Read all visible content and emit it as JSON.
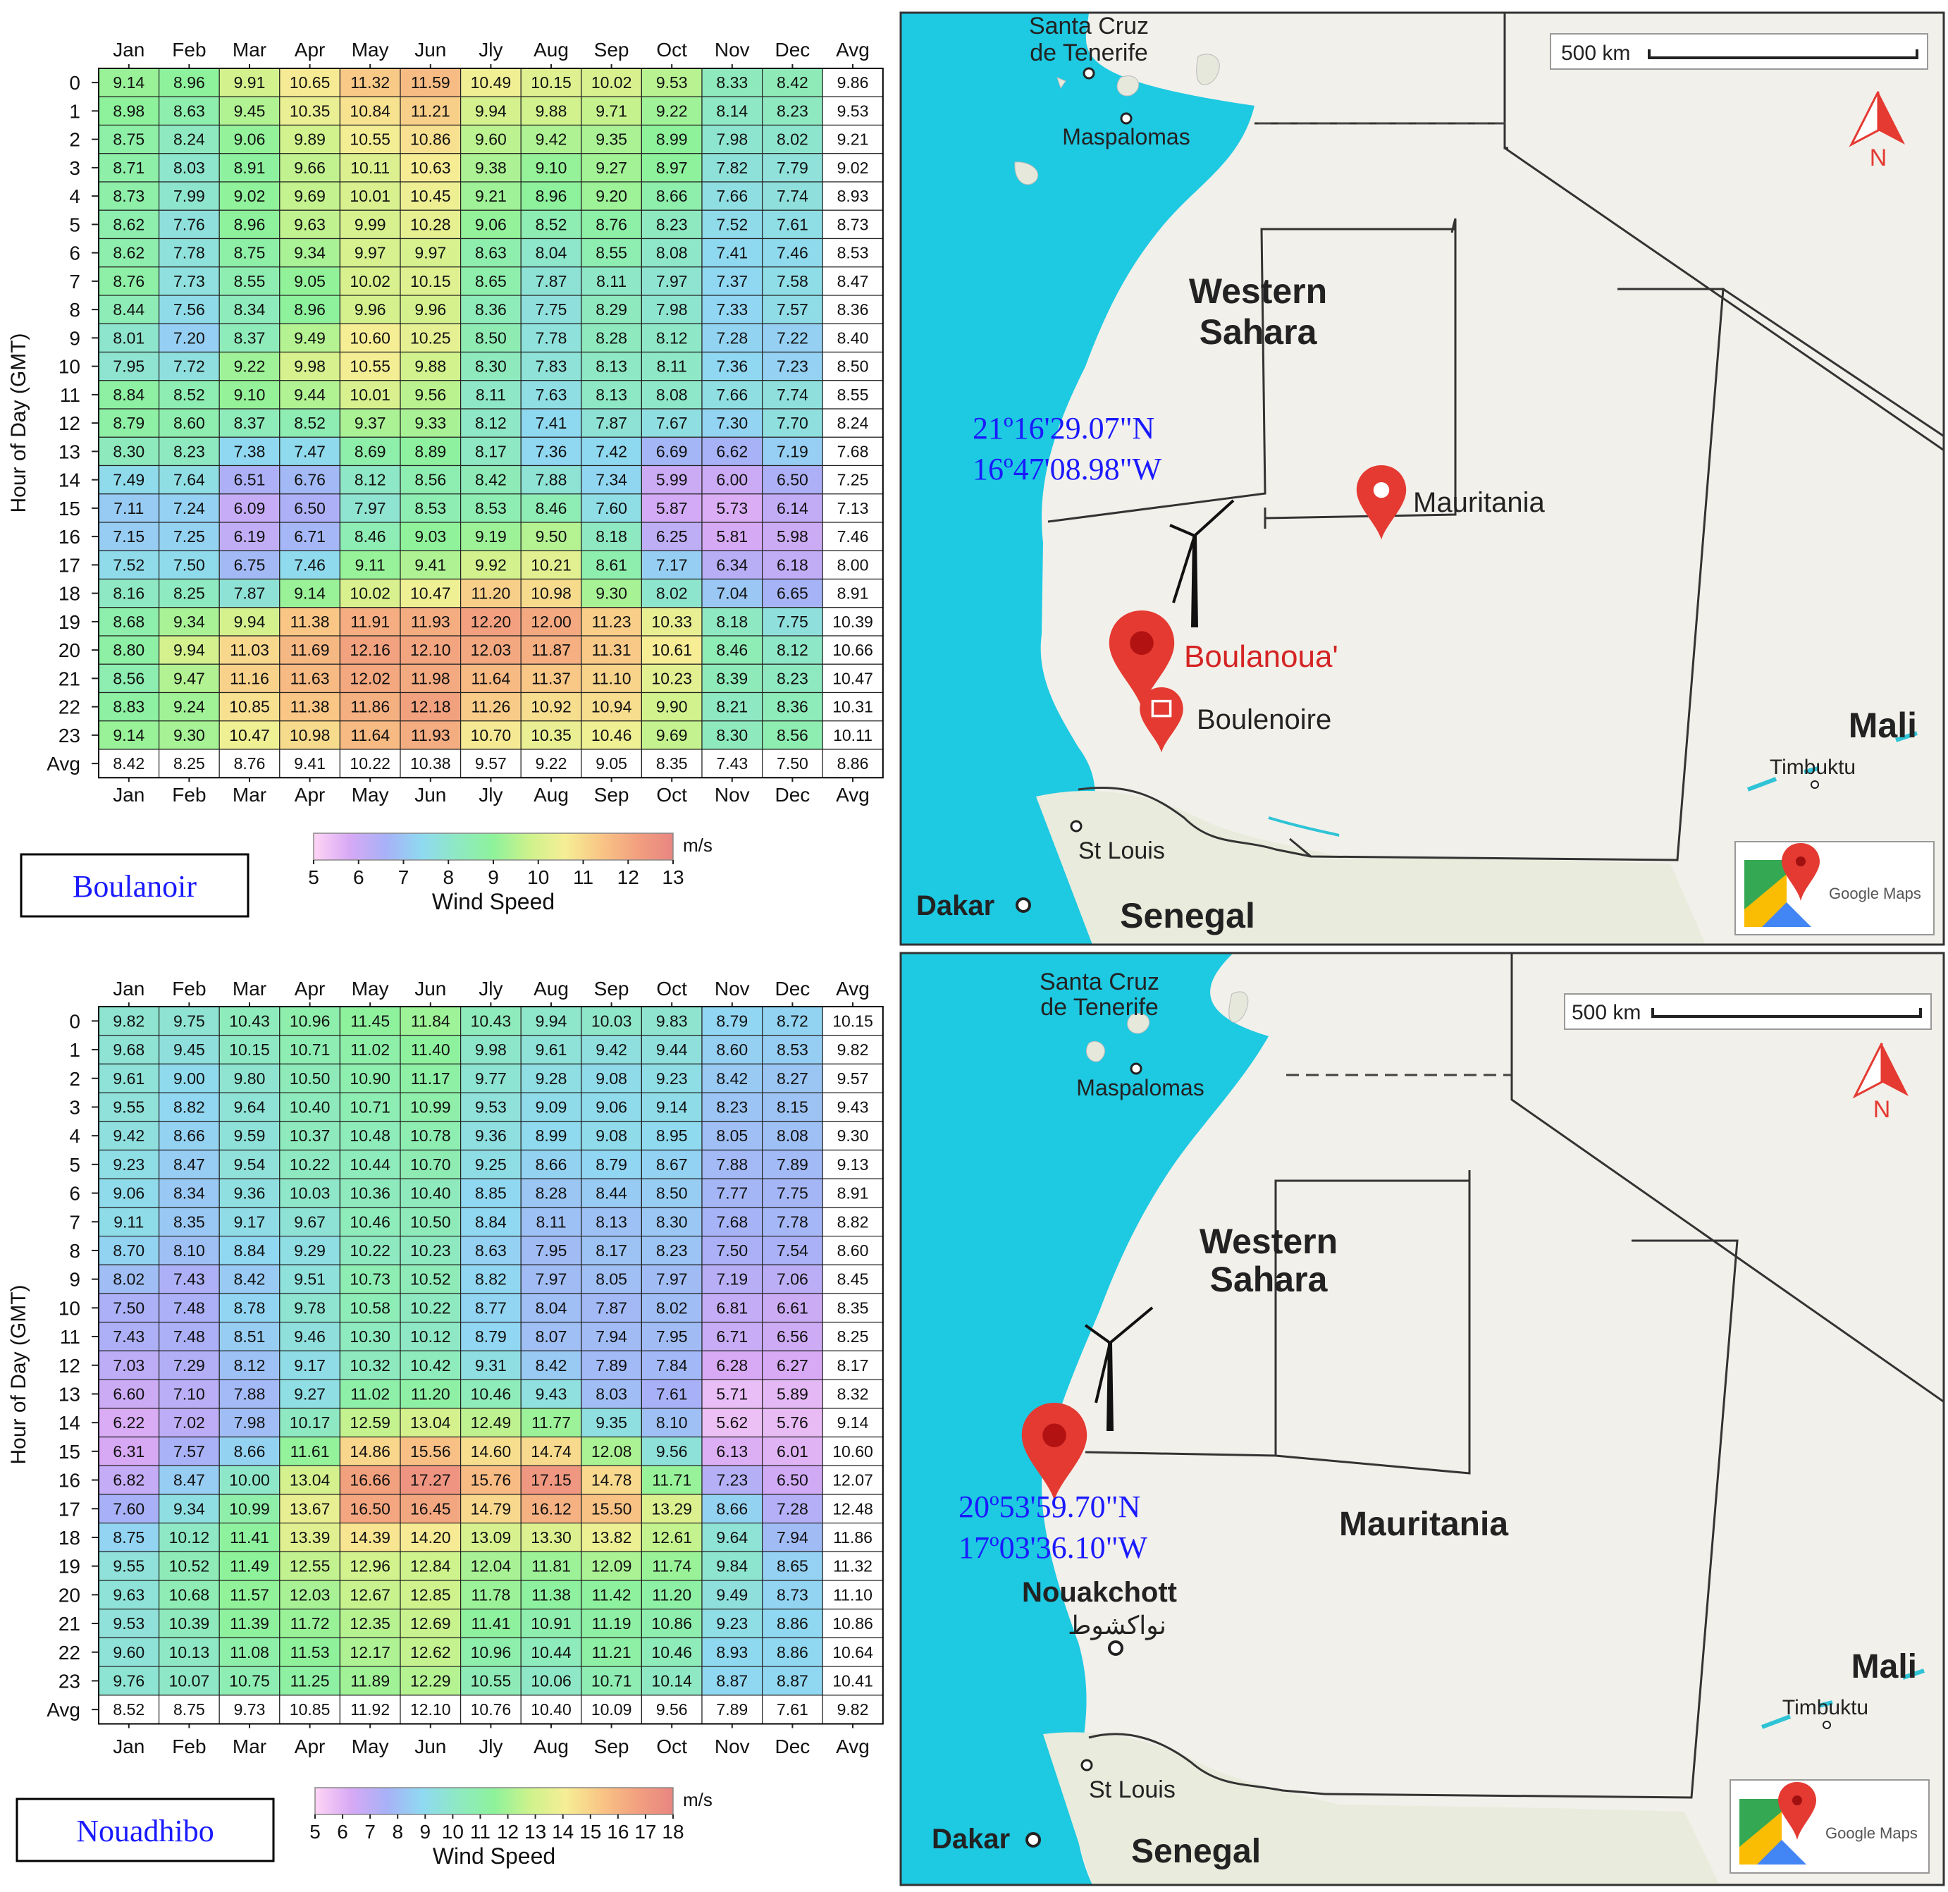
{
  "heatmaps": [
    {
      "id": "boulanoir",
      "site_label": "Boulanoir",
      "ylabel": "Hour of Day (GMT)",
      "months": [
        "Jan",
        "Feb",
        "Mar",
        "Apr",
        "May",
        "Jun",
        "Jly",
        "Aug",
        "Sep",
        "Oct",
        "Nov",
        "Dec",
        "Avg"
      ],
      "hours": [
        "0",
        "1",
        "2",
        "3",
        "4",
        "5",
        "6",
        "7",
        "8",
        "9",
        "10",
        "11",
        "12",
        "13",
        "14",
        "15",
        "16",
        "17",
        "18",
        "19",
        "20",
        "21",
        "22",
        "23",
        "Avg"
      ],
      "scale_min": 5,
      "scale_max": 13,
      "colorbar_ticks": [
        "5",
        "6",
        "7",
        "8",
        "9",
        "10",
        "11",
        "12",
        "13"
      ],
      "colorbar_title": "Wind Speed",
      "colorbar_unit": "m/s",
      "values": [
        [
          "9.14",
          "8.96",
          "9.91",
          "10.65",
          "11.32",
          "11.59",
          "10.49",
          "10.15",
          "10.02",
          "9.53",
          "8.33",
          "8.42",
          "9.86"
        ],
        [
          "8.98",
          "8.63",
          "9.45",
          "10.35",
          "10.84",
          "11.21",
          "9.94",
          "9.88",
          "9.71",
          "9.22",
          "8.14",
          "8.23",
          "9.53"
        ],
        [
          "8.75",
          "8.24",
          "9.06",
          "9.89",
          "10.55",
          "10.86",
          "9.60",
          "9.42",
          "9.35",
          "8.99",
          "7.98",
          "8.02",
          "9.21"
        ],
        [
          "8.71",
          "8.03",
          "8.91",
          "9.66",
          "10.11",
          "10.63",
          "9.38",
          "9.10",
          "9.27",
          "8.97",
          "7.82",
          "7.79",
          "9.02"
        ],
        [
          "8.73",
          "7.99",
          "9.02",
          "9.69",
          "10.01",
          "10.45",
          "9.21",
          "8.96",
          "9.20",
          "8.66",
          "7.66",
          "7.74",
          "8.93"
        ],
        [
          "8.62",
          "7.76",
          "8.96",
          "9.63",
          "9.99",
          "10.28",
          "9.06",
          "8.52",
          "8.76",
          "8.23",
          "7.52",
          "7.61",
          "8.73"
        ],
        [
          "8.62",
          "7.78",
          "8.75",
          "9.34",
          "9.97",
          "9.97",
          "8.63",
          "8.04",
          "8.55",
          "8.08",
          "7.41",
          "7.46",
          "8.53"
        ],
        [
          "8.76",
          "7.73",
          "8.55",
          "9.05",
          "10.02",
          "10.15",
          "8.65",
          "7.87",
          "8.11",
          "7.97",
          "7.37",
          "7.58",
          "8.47"
        ],
        [
          "8.44",
          "7.56",
          "8.34",
          "8.96",
          "9.96",
          "9.96",
          "8.36",
          "7.75",
          "8.29",
          "7.98",
          "7.33",
          "7.57",
          "8.36"
        ],
        [
          "8.01",
          "7.20",
          "8.37",
          "9.49",
          "10.60",
          "10.25",
          "8.50",
          "7.78",
          "8.28",
          "8.12",
          "7.28",
          "7.22",
          "8.40"
        ],
        [
          "7.95",
          "7.72",
          "9.22",
          "9.98",
          "10.55",
          "9.88",
          "8.30",
          "7.83",
          "8.13",
          "8.11",
          "7.36",
          "7.23",
          "8.50"
        ],
        [
          "8.84",
          "8.52",
          "9.10",
          "9.44",
          "10.01",
          "9.56",
          "8.11",
          "7.63",
          "8.13",
          "8.08",
          "7.66",
          "7.74",
          "8.55"
        ],
        [
          "8.79",
          "8.60",
          "8.37",
          "8.52",
          "9.37",
          "9.33",
          "8.12",
          "7.41",
          "7.87",
          "7.67",
          "7.30",
          "7.70",
          "8.24"
        ],
        [
          "8.30",
          "8.23",
          "7.38",
          "7.47",
          "8.69",
          "8.89",
          "8.17",
          "7.36",
          "7.42",
          "6.69",
          "6.62",
          "7.19",
          "7.68"
        ],
        [
          "7.49",
          "7.64",
          "6.51",
          "6.76",
          "8.12",
          "8.56",
          "8.42",
          "7.88",
          "7.34",
          "5.99",
          "6.00",
          "6.50",
          "7.25"
        ],
        [
          "7.11",
          "7.24",
          "6.09",
          "6.50",
          "7.97",
          "8.53",
          "8.53",
          "8.46",
          "7.60",
          "5.87",
          "5.73",
          "6.14",
          "7.13"
        ],
        [
          "7.15",
          "7.25",
          "6.19",
          "6.71",
          "8.46",
          "9.03",
          "9.19",
          "9.50",
          "8.18",
          "6.25",
          "5.81",
          "5.98",
          "7.46"
        ],
        [
          "7.52",
          "7.50",
          "6.75",
          "7.46",
          "9.11",
          "9.41",
          "9.92",
          "10.21",
          "8.61",
          "7.17",
          "6.34",
          "6.18",
          "8.00"
        ],
        [
          "8.16",
          "8.25",
          "7.87",
          "9.14",
          "10.02",
          "10.47",
          "11.20",
          "10.98",
          "9.30",
          "8.02",
          "7.04",
          "6.65",
          "8.91"
        ],
        [
          "8.68",
          "9.34",
          "9.94",
          "11.38",
          "11.91",
          "11.93",
          "12.20",
          "12.00",
          "11.23",
          "10.33",
          "8.18",
          "7.75",
          "10.39"
        ],
        [
          "8.80",
          "9.94",
          "11.03",
          "11.69",
          "12.16",
          "12.10",
          "12.03",
          "11.87",
          "11.31",
          "10.61",
          "8.46",
          "8.12",
          "10.66"
        ],
        [
          "8.56",
          "9.47",
          "11.16",
          "11.63",
          "12.02",
          "11.98",
          "11.64",
          "11.37",
          "11.10",
          "10.23",
          "8.39",
          "8.23",
          "10.47"
        ],
        [
          "8.83",
          "9.24",
          "10.85",
          "11.38",
          "11.86",
          "12.18",
          "11.26",
          "10.92",
          "10.94",
          "9.90",
          "8.21",
          "8.36",
          "10.31"
        ],
        [
          "9.14",
          "9.30",
          "10.47",
          "10.98",
          "11.64",
          "11.93",
          "10.70",
          "10.35",
          "10.46",
          "9.69",
          "8.30",
          "8.56",
          "10.11"
        ],
        [
          "8.42",
          "8.25",
          "8.76",
          "9.41",
          "10.22",
          "10.38",
          "9.57",
          "9.22",
          "9.05",
          "8.35",
          "7.43",
          "7.50",
          "8.86"
        ]
      ]
    },
    {
      "id": "nouadhibo",
      "site_label": "Nouadhibo",
      "ylabel": "Hour of Day (GMT)",
      "months": [
        "Jan",
        "Feb",
        "Mar",
        "Apr",
        "May",
        "Jun",
        "Jly",
        "Aug",
        "Sep",
        "Oct",
        "Nov",
        "Dec",
        "Avg"
      ],
      "hours": [
        "0",
        "1",
        "2",
        "3",
        "4",
        "5",
        "6",
        "7",
        "8",
        "9",
        "10",
        "11",
        "12",
        "13",
        "14",
        "15",
        "16",
        "17",
        "18",
        "19",
        "20",
        "21",
        "22",
        "23",
        "Avg"
      ],
      "scale_min": 5,
      "scale_max": 18,
      "colorbar_ticks": [
        "5",
        "6",
        "7",
        "8",
        "9",
        "10",
        "11",
        "12",
        "13",
        "14",
        "15",
        "16",
        "17",
        "18"
      ],
      "colorbar_title": "Wind Speed",
      "colorbar_unit": "m/s",
      "values": [
        [
          "9.82",
          "9.75",
          "10.43",
          "10.96",
          "11.45",
          "11.84",
          "10.43",
          "9.94",
          "10.03",
          "9.83",
          "8.79",
          "8.72",
          "10.15"
        ],
        [
          "9.68",
          "9.45",
          "10.15",
          "10.71",
          "11.02",
          "11.40",
          "9.98",
          "9.61",
          "9.42",
          "9.44",
          "8.60",
          "8.53",
          "9.82"
        ],
        [
          "9.61",
          "9.00",
          "9.80",
          "10.50",
          "10.90",
          "11.17",
          "9.77",
          "9.28",
          "9.08",
          "9.23",
          "8.42",
          "8.27",
          "9.57"
        ],
        [
          "9.55",
          "8.82",
          "9.64",
          "10.40",
          "10.71",
          "10.99",
          "9.53",
          "9.09",
          "9.06",
          "9.14",
          "8.23",
          "8.15",
          "9.43"
        ],
        [
          "9.42",
          "8.66",
          "9.59",
          "10.37",
          "10.48",
          "10.78",
          "9.36",
          "8.99",
          "9.08",
          "8.95",
          "8.05",
          "8.08",
          "9.30"
        ],
        [
          "9.23",
          "8.47",
          "9.54",
          "10.22",
          "10.44",
          "10.70",
          "9.25",
          "8.66",
          "8.79",
          "8.67",
          "7.88",
          "7.89",
          "9.13"
        ],
        [
          "9.06",
          "8.34",
          "9.36",
          "10.03",
          "10.36",
          "10.40",
          "8.85",
          "8.28",
          "8.44",
          "8.50",
          "7.77",
          "7.75",
          "8.91"
        ],
        [
          "9.11",
          "8.35",
          "9.17",
          "9.67",
          "10.46",
          "10.50",
          "8.84",
          "8.11",
          "8.13",
          "8.30",
          "7.68",
          "7.78",
          "8.82"
        ],
        [
          "8.70",
          "8.10",
          "8.84",
          "9.29",
          "10.22",
          "10.23",
          "8.63",
          "7.95",
          "8.17",
          "8.23",
          "7.50",
          "7.54",
          "8.60"
        ],
        [
          "8.02",
          "7.43",
          "8.42",
          "9.51",
          "10.73",
          "10.52",
          "8.82",
          "7.97",
          "8.05",
          "7.97",
          "7.19",
          "7.06",
          "8.45"
        ],
        [
          "7.50",
          "7.48",
          "8.78",
          "9.78",
          "10.58",
          "10.22",
          "8.77",
          "8.04",
          "7.87",
          "8.02",
          "6.81",
          "6.61",
          "8.35"
        ],
        [
          "7.43",
          "7.48",
          "8.51",
          "9.46",
          "10.30",
          "10.12",
          "8.79",
          "8.07",
          "7.94",
          "7.95",
          "6.71",
          "6.56",
          "8.25"
        ],
        [
          "7.03",
          "7.29",
          "8.12",
          "9.17",
          "10.32",
          "10.42",
          "9.31",
          "8.42",
          "7.89",
          "7.84",
          "6.28",
          "6.27",
          "8.17"
        ],
        [
          "6.60",
          "7.10",
          "7.88",
          "9.27",
          "11.02",
          "11.20",
          "10.46",
          "9.43",
          "8.03",
          "7.61",
          "5.71",
          "5.89",
          "8.32"
        ],
        [
          "6.22",
          "7.02",
          "7.98",
          "10.17",
          "12.59",
          "13.04",
          "12.49",
          "11.77",
          "9.35",
          "8.10",
          "5.62",
          "5.76",
          "9.14"
        ],
        [
          "6.31",
          "7.57",
          "8.66",
          "11.61",
          "14.86",
          "15.56",
          "14.60",
          "14.74",
          "12.08",
          "9.56",
          "6.13",
          "6.01",
          "10.60"
        ],
        [
          "6.82",
          "8.47",
          "10.00",
          "13.04",
          "16.66",
          "17.27",
          "15.76",
          "17.15",
          "14.78",
          "11.71",
          "7.23",
          "6.50",
          "12.07"
        ],
        [
          "7.60",
          "9.34",
          "10.99",
          "13.67",
          "16.50",
          "16.45",
          "14.79",
          "16.12",
          "15.50",
          "13.29",
          "8.66",
          "7.28",
          "12.48"
        ],
        [
          "8.75",
          "10.12",
          "11.41",
          "13.39",
          "14.39",
          "14.20",
          "13.09",
          "13.30",
          "13.82",
          "12.61",
          "9.64",
          "7.94",
          "11.86"
        ],
        [
          "9.55",
          "10.52",
          "11.49",
          "12.55",
          "12.96",
          "12.84",
          "12.04",
          "11.81",
          "12.09",
          "11.74",
          "9.84",
          "8.65",
          "11.32"
        ],
        [
          "9.63",
          "10.68",
          "11.57",
          "12.03",
          "12.67",
          "12.85",
          "11.78",
          "11.38",
          "11.42",
          "11.20",
          "9.49",
          "8.73",
          "11.10"
        ],
        [
          "9.53",
          "10.39",
          "11.39",
          "11.72",
          "12.35",
          "12.69",
          "11.41",
          "10.91",
          "11.19",
          "10.86",
          "9.23",
          "8.86",
          "10.86"
        ],
        [
          "9.60",
          "10.13",
          "11.08",
          "11.53",
          "12.17",
          "12.62",
          "10.96",
          "10.44",
          "11.21",
          "10.46",
          "8.93",
          "8.86",
          "10.64"
        ],
        [
          "9.76",
          "10.07",
          "10.75",
          "11.25",
          "11.89",
          "12.29",
          "10.55",
          "10.06",
          "10.71",
          "10.14",
          "8.87",
          "8.87",
          "10.41"
        ],
        [
          "8.52",
          "8.75",
          "9.73",
          "10.85",
          "11.92",
          "12.10",
          "10.76",
          "10.40",
          "10.09",
          "9.56",
          "7.89",
          "7.61",
          "9.82"
        ]
      ]
    }
  ],
  "chart_data": [
    {
      "type": "heatmap",
      "title": "Boulanoir",
      "xlabel": "",
      "ylabel": "Hour of Day (GMT)",
      "x": [
        "Jan",
        "Feb",
        "Mar",
        "Apr",
        "May",
        "Jun",
        "Jly",
        "Aug",
        "Sep",
        "Oct",
        "Nov",
        "Dec",
        "Avg"
      ],
      "y": [
        "0",
        "1",
        "2",
        "3",
        "4",
        "5",
        "6",
        "7",
        "8",
        "9",
        "10",
        "11",
        "12",
        "13",
        "14",
        "15",
        "16",
        "17",
        "18",
        "19",
        "20",
        "21",
        "22",
        "23",
        "Avg"
      ],
      "colorbar": {
        "label": "Wind Speed",
        "unit": "m/s",
        "range": [
          5,
          13
        ]
      },
      "values_ref": "heatmaps.0.values"
    },
    {
      "type": "heatmap",
      "title": "Nouadhibo",
      "xlabel": "",
      "ylabel": "Hour of Day (GMT)",
      "x": [
        "Jan",
        "Feb",
        "Mar",
        "Apr",
        "May",
        "Jun",
        "Jly",
        "Aug",
        "Sep",
        "Oct",
        "Nov",
        "Dec",
        "Avg"
      ],
      "y": [
        "0",
        "1",
        "2",
        "3",
        "4",
        "5",
        "6",
        "7",
        "8",
        "9",
        "10",
        "11",
        "12",
        "13",
        "14",
        "15",
        "16",
        "17",
        "18",
        "19",
        "20",
        "21",
        "22",
        "23",
        "Avg"
      ],
      "colorbar": {
        "label": "Wind Speed",
        "unit": "m/s",
        "range": [
          5,
          18
        ]
      },
      "values_ref": "heatmaps.1.values"
    }
  ],
  "maps": [
    {
      "id": "map-top",
      "scale_label": "500 km",
      "north_label": "N",
      "labels": {
        "santa_cruz_1": "Santa Cruz",
        "santa_cruz_2": "de Tenerife",
        "maspalomas": "Maspalomas",
        "western_1": "Western",
        "western_2": "Sahara",
        "mauritania": "Mauritania",
        "boulanoua": "Boulanoua'",
        "boulenoire": "Boulenoire",
        "mali": "Mali",
        "timbuktu": "Timbuktu",
        "st_louis": "St Louis",
        "dakar": "Dakar",
        "senegal": "Senegal",
        "coord_lat": "21º16'29.07\"N",
        "coord_lon": "16º47'08.98\"W",
        "brand": "Google Maps"
      }
    },
    {
      "id": "map-bottom",
      "scale_label": "500 km",
      "north_label": "N",
      "labels": {
        "santa_cruz_1": "Santa Cruz",
        "santa_cruz_2": "de Tenerife",
        "maspalomas": "Maspalomas",
        "western_1": "Western",
        "western_2": "Sahara",
        "mauritania": "Mauritania",
        "nouakchott": "Nouakchott",
        "nouakchott_ar": "نواكشوط",
        "mali": "Mali",
        "timbuktu": "Timbuktu",
        "st_louis": "St Louis",
        "dakar": "Dakar",
        "senegal": "Senegal",
        "coord_lat": "20º53'59.70\"N",
        "coord_lon": "17º03'36.10\"W",
        "brand": "Google Maps"
      }
    }
  ],
  "colors": {
    "ocean": "#1ec9e2",
    "land": "#f2f0ea",
    "border": "#333333",
    "pin": "#e43a32",
    "coord_text": "#1a1aff",
    "site_label_text": "#1a1aff",
    "boulanoua_text": "#d42424",
    "colormap": [
      "#ffd5f5",
      "#d7a9f5",
      "#a8b1f7",
      "#8fd9f1",
      "#8ee9c2",
      "#8ef29b",
      "#cdf28c",
      "#f6ee95",
      "#f9c585",
      "#f2a07f",
      "#e88581"
    ]
  },
  "icons": [
    "map-pin-icon",
    "wind-turbine-icon",
    "north-arrow-icon",
    "google-maps-logo-icon",
    "city-dot-icon"
  ]
}
